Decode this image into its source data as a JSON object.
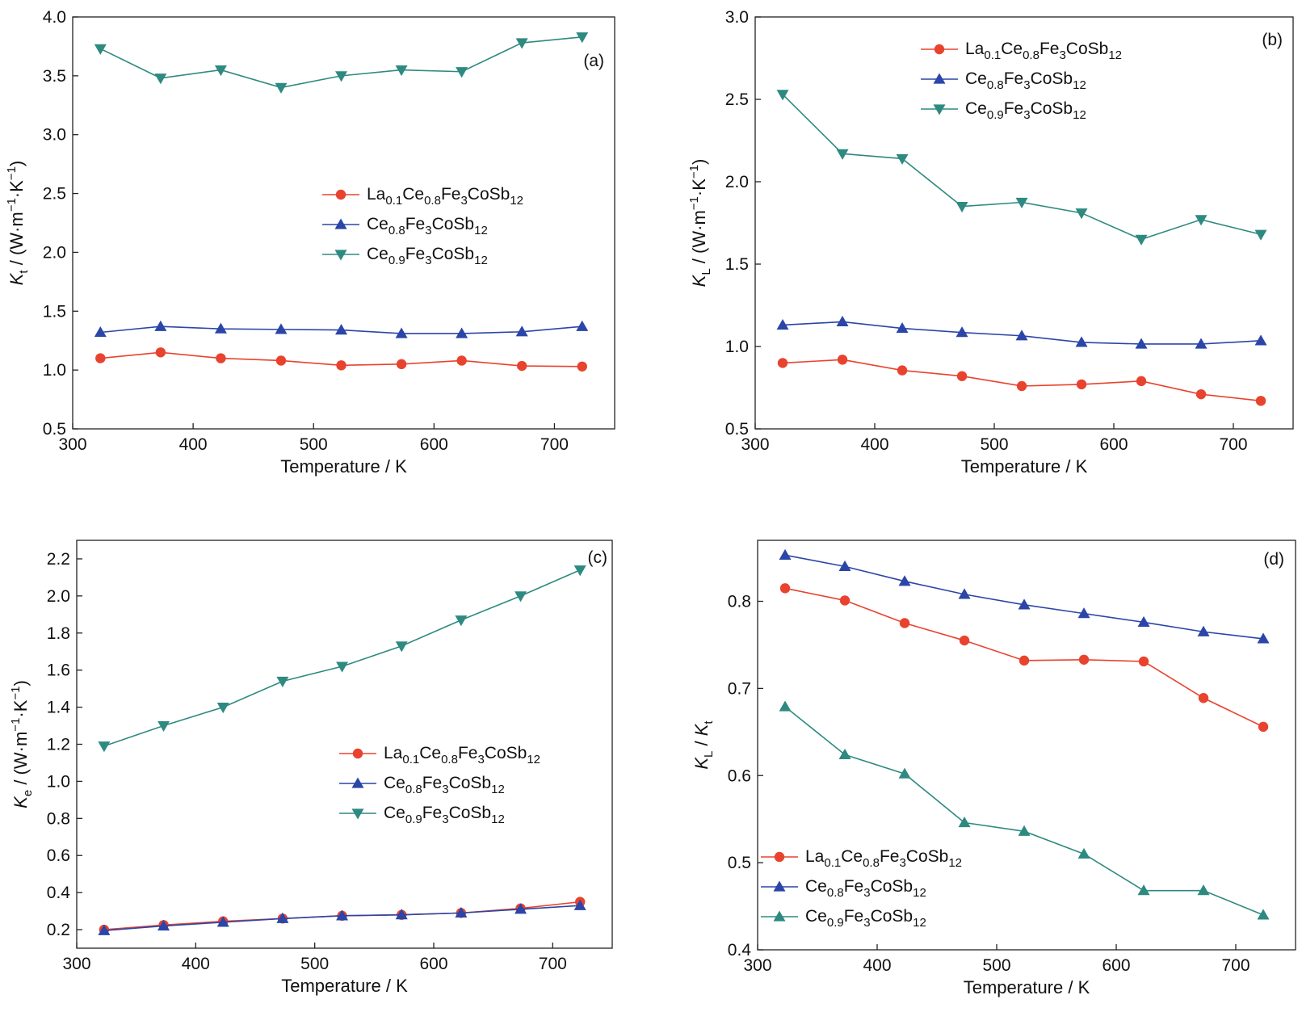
{
  "chart_data": [
    {
      "type": "line",
      "panel_label": "(a)",
      "xlabel": "Temperature / K",
      "ylabel": {
        "symbol": "K",
        "sub": "t",
        "rest": " / (W·m",
        "sup1": "−1",
        "mid": "·K",
        "sup2": "−1",
        "end": ")"
      },
      "xlim": [
        300,
        750
      ],
      "ylim": [
        0.5,
        4.0
      ],
      "xticks": [
        300,
        400,
        500,
        600,
        700
      ],
      "yticks": [
        0.5,
        1.0,
        1.5,
        2.0,
        2.5,
        3.0,
        3.5,
        4.0
      ],
      "ytick_decimals": 1,
      "legend_position": "center-right",
      "x": [
        323,
        373,
        423,
        473,
        523,
        573,
        623,
        673,
        723
      ],
      "series": [
        {
          "name": "La0.1Ce0.8Fe3CoSb12",
          "marker": "circle",
          "color": "#e8432e",
          "values": [
            1.1,
            1.15,
            1.1,
            1.08,
            1.04,
            1.05,
            1.08,
            1.035,
            1.03
          ]
        },
        {
          "name": "Ce0.8Fe3CoSb12",
          "marker": "triangle-up",
          "color": "#2b45a8",
          "values": [
            1.32,
            1.37,
            1.35,
            1.345,
            1.34,
            1.31,
            1.31,
            1.325,
            1.37
          ]
        },
        {
          "name": "Ce0.9Fe3CoSb12",
          "marker": "triangle-down",
          "color": "#2e8a80",
          "values": [
            3.73,
            3.48,
            3.55,
            3.4,
            3.5,
            3.55,
            3.535,
            3.78,
            3.83
          ]
        }
      ]
    },
    {
      "type": "line",
      "panel_label": "(b)",
      "xlabel": "Temperature / K",
      "ylabel": {
        "symbol": "K",
        "sub": "L",
        "rest": " / (W·m",
        "sup1": "−1",
        "mid": "·K",
        "sup2": "−1",
        "end": ")"
      },
      "xlim": [
        300,
        750
      ],
      "ylim": [
        0.5,
        3.0
      ],
      "xticks": [
        300,
        400,
        500,
        600,
        700
      ],
      "yticks": [
        0.5,
        1.0,
        1.5,
        2.0,
        2.5,
        3.0
      ],
      "ytick_decimals": 1,
      "legend_position": "top-center",
      "x": [
        323,
        373,
        423,
        473,
        523,
        573,
        623,
        673,
        723
      ],
      "series": [
        {
          "name": "La0.1Ce0.8Fe3CoSb12",
          "marker": "circle",
          "color": "#e8432e",
          "values": [
            0.9,
            0.92,
            0.855,
            0.82,
            0.76,
            0.77,
            0.79,
            0.71,
            0.67
          ]
        },
        {
          "name": "Ce0.8Fe3CoSb12",
          "marker": "triangle-up",
          "color": "#2b45a8",
          "values": [
            1.13,
            1.15,
            1.11,
            1.085,
            1.065,
            1.025,
            1.015,
            1.015,
            1.035
          ]
        },
        {
          "name": "Ce0.9Fe3CoSb12",
          "marker": "triangle-down",
          "color": "#2e8a80",
          "values": [
            2.53,
            2.17,
            2.14,
            1.85,
            1.875,
            1.81,
            1.65,
            1.77,
            1.68
          ]
        }
      ]
    },
    {
      "type": "line",
      "panel_label": "(c)",
      "xlabel": "Temperature / K",
      "ylabel": {
        "symbol": "K",
        "sub": "e",
        "rest": " / (W·m",
        "sup1": "−1",
        "mid": "·K",
        "sup2": "−1",
        "end": ")"
      },
      "xlim": [
        300,
        750
      ],
      "ylim": [
        0.1,
        2.3
      ],
      "xticks": [
        300,
        400,
        500,
        600,
        700
      ],
      "yticks": [
        0.2,
        0.4,
        0.6,
        0.8,
        1.0,
        1.2,
        1.4,
        1.6,
        1.8,
        2.0,
        2.2
      ],
      "ytick_decimals": 1,
      "legend_position": "center-right",
      "x": [
        323,
        373,
        423,
        473,
        523,
        573,
        623,
        673,
        723
      ],
      "series": [
        {
          "name": "La0.1Ce0.8Fe3CoSb12",
          "marker": "circle",
          "color": "#e8432e",
          "values": [
            0.2,
            0.225,
            0.245,
            0.26,
            0.275,
            0.28,
            0.29,
            0.315,
            0.35
          ]
        },
        {
          "name": "Ce0.8Fe3CoSb12",
          "marker": "triangle-up",
          "color": "#2b45a8",
          "values": [
            0.195,
            0.22,
            0.24,
            0.26,
            0.275,
            0.28,
            0.29,
            0.31,
            0.33
          ]
        },
        {
          "name": "Ce0.9Fe3CoSb12",
          "marker": "triangle-down",
          "color": "#2e8a80",
          "values": [
            1.19,
            1.3,
            1.4,
            1.54,
            1.62,
            1.73,
            1.87,
            2.0,
            2.14
          ]
        }
      ]
    },
    {
      "type": "line",
      "panel_label": "(d)",
      "xlabel": "Temperature / K",
      "ylabel": {
        "symbol": "K",
        "sub": "L",
        "rest": " / ",
        "symbol2": "K",
        "sub2": "t"
      },
      "xlim": [
        300,
        750
      ],
      "ylim": [
        0.4,
        0.87
      ],
      "xticks": [
        300,
        400,
        500,
        600,
        700
      ],
      "yticks": [
        0.4,
        0.5,
        0.6,
        0.7,
        0.8
      ],
      "ytick_decimals": 1,
      "legend_position": "bottom-left",
      "x": [
        323,
        373,
        423,
        473,
        523,
        573,
        623,
        673,
        723
      ],
      "series": [
        {
          "name": "La0.1Ce0.8Fe3CoSb12",
          "marker": "circle",
          "color": "#e8432e",
          "values": [
            0.815,
            0.801,
            0.775,
            0.755,
            0.732,
            0.733,
            0.731,
            0.689,
            0.656
          ]
        },
        {
          "name": "Ce0.8Fe3CoSb12",
          "marker": "triangle-up",
          "color": "#2b45a8",
          "values": [
            0.853,
            0.84,
            0.823,
            0.808,
            0.796,
            0.786,
            0.776,
            0.765,
            0.757
          ]
        },
        {
          "name": "Ce0.9Fe3CoSb12",
          "marker": "triangle-up",
          "color": "#2e8a80",
          "values": [
            0.679,
            0.624,
            0.602,
            0.546,
            0.536,
            0.51,
            0.468,
            0.468,
            0.44
          ]
        }
      ]
    }
  ]
}
